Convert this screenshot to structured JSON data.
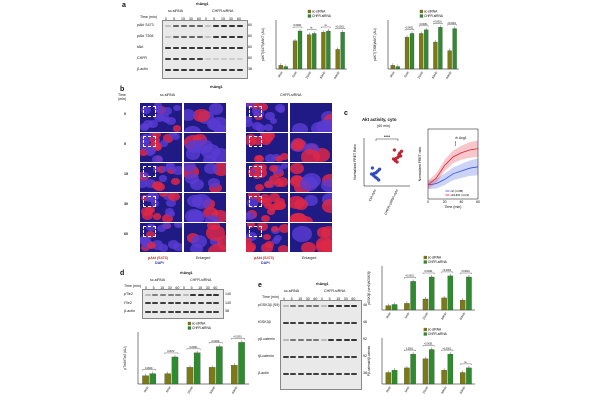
{
  "colors": {
    "sc": "#7a7a16",
    "chfr": "#2e8b2e",
    "micro_bg": "#201a85",
    "pakt_red": "#d42020",
    "dapi_blue": "#2a2aa8"
  },
  "panel_a": {
    "label": "a",
    "treatment": "rhAng1",
    "groups": [
      "sc-siRNA",
      "CHFR-siRNA"
    ],
    "time_label": "Time (min)",
    "time_points": [
      "0",
      "5",
      "15",
      "30",
      "60",
      "0",
      "5",
      "15",
      "30",
      "60"
    ],
    "rows": [
      "pAkt S473",
      "pAkt T308",
      "tAkt",
      "CHFR",
      "β-actin"
    ],
    "mw": [
      "60",
      "60",
      "60",
      "60",
      "38"
    ],
    "chart1": {
      "ylabel": "pAKT(S473)/tAKT (AU)",
      "categories": [
        "0min",
        "5min",
        "15min",
        "30min",
        "60min"
      ]
    },
    "chart2": {
      "ylabel": "pAKT(T308)/tAKT (AU)",
      "categories": [
        "0min",
        "5min",
        "15min",
        "30min",
        "60min"
      ]
    },
    "legend": [
      "sc-siRNA",
      "CHFR-siRNA"
    ],
    "pvals1": [
      "<0.0001",
      "ns",
      "ns",
      "<0.0001"
    ],
    "pvals2": [
      "<0.0001",
      "<0.0001",
      "<0.0001",
      "<0.0001"
    ]
  },
  "panel_b": {
    "label": "b",
    "treatment": "rhAng1",
    "groups": [
      "sc-siRNA",
      "CHFR-siRNA"
    ],
    "time_label": "Time (min)",
    "rows": [
      "0",
      "5",
      "15",
      "30",
      "60"
    ],
    "stain_label": "pAkt (S473)",
    "dapi_label": "DAPI",
    "enlarged_label": "Enlarged"
  },
  "panel_c": {
    "label": "c",
    "title": "Akt activity, cyto",
    "subtitle": "(60 min)",
    "sig": "****",
    "ylabel": "Normalized FRET Ratio",
    "xcats": [
      "Ctrl-cyto",
      "CHFR-siRNA-cyto"
    ],
    "right_ylabel": "Normalized FRET ratio",
    "right_xlabel": "Time (min)",
    "right_xticks": [
      "0",
      "20",
      "40",
      "60"
    ],
    "right_annot": "rh Ang1",
    "right_legend": [
      "ctrl (n=88)",
      "siCHFR (n=22)"
    ]
  },
  "panel_d": {
    "label": "d",
    "treatment": "rhAng1",
    "groups": [
      "sc-siRNA",
      "CHFR-siRNA"
    ],
    "time_label": "Time (min)",
    "time_points": [
      "0",
      "5",
      "15",
      "30",
      "60",
      "0",
      "5",
      "15",
      "30",
      "60"
    ],
    "rows": [
      "pTie2",
      "tTie2",
      "β-actin"
    ],
    "mw": [
      "140",
      "140",
      "38"
    ],
    "chart": {
      "ylabel": "pTie2/tTie2 (AU)",
      "categories": [
        "0min",
        "5min",
        "15min",
        "30min",
        "60min"
      ]
    },
    "legend": [
      "sc-siRNA",
      "CHFR-siRNA"
    ],
    "pvals": [
      "0.0029",
      "0.0072",
      "<0.0001",
      "<0.0001",
      "<0.0001"
    ]
  },
  "panel_e": {
    "label": "e",
    "treatment": "rhAng1",
    "groups": [
      "sc-siRNA",
      "CHFR-siRNA"
    ],
    "time_label": "Time (min)",
    "time_points": [
      "0",
      "5",
      "15",
      "30",
      "60",
      "0",
      "5",
      "15",
      "30",
      "60"
    ],
    "rows": [
      "pGSK3β (S9)",
      "tGSK3β",
      "pβ-catenin",
      "tβ-catenin",
      "β-actin"
    ],
    "mw": [
      "46",
      "46",
      "92",
      "92",
      "38"
    ],
    "chart1": {
      "ylabel": "pGSK3β (ser9)/tGSK3β",
      "categories": [
        "0min",
        "5min",
        "15min",
        "30min",
        "60min"
      ]
    },
    "chart2": {
      "ylabel": "Pβ-catenin/tβ-catenin",
      "categories": [
        "0min",
        "5min",
        "15min",
        "30min",
        "60min"
      ]
    },
    "legend": [
      "sc-siRNA",
      "CHFR-siRNA"
    ],
    "pvals1": [
      "<0.0001",
      "<0.0001",
      "<0.0001",
      "<0.0001"
    ],
    "pvals2": [
      "0.0001",
      "<0.0001",
      "<0.0001",
      "ns"
    ]
  },
  "chart_data": [
    {
      "type": "bar",
      "ylabel": "pAKT(S473)/tAKT (AU)",
      "categories": [
        "0min",
        "5min",
        "15min",
        "30min",
        "60min"
      ],
      "ylim": [
        0,
        4
      ],
      "series": [
        {
          "name": "sc-siRNA",
          "values": [
            0.3,
            2.3,
            2.8,
            3.0,
            1.6
          ]
        },
        {
          "name": "CHFR-siRNA",
          "values": [
            0.2,
            3.1,
            2.9,
            3.1,
            3.0
          ]
        }
      ]
    },
    {
      "type": "bar",
      "ylabel": "pAKT(T308)/tAKT (AU)",
      "categories": [
        "0min",
        "5min",
        "15min",
        "30min",
        "60min"
      ],
      "ylim": [
        0,
        4
      ],
      "series": [
        {
          "name": "sc-siRNA",
          "values": [
            0.3,
            2.6,
            2.9,
            2.2,
            1.5
          ]
        },
        {
          "name": "CHFR-siRNA",
          "values": [
            0.2,
            2.9,
            3.2,
            3.4,
            3.3
          ]
        }
      ]
    },
    {
      "type": "bar",
      "ylabel": "pTie2/tTie2 (AU)",
      "categories": [
        "0min",
        "5min",
        "15min",
        "30min",
        "60min"
      ],
      "ylim": [
        0,
        2.5
      ],
      "series": [
        {
          "name": "sc-siRNA",
          "values": [
            0.4,
            0.5,
            0.8,
            0.8,
            0.9
          ]
        },
        {
          "name": "CHFR-siRNA",
          "values": [
            0.5,
            1.3,
            1.5,
            1.8,
            2.0
          ]
        }
      ]
    },
    {
      "type": "bar",
      "ylabel": "pGSK3β (ser9)/tGSK3β",
      "categories": [
        "0min",
        "5min",
        "15min",
        "30min",
        "60min"
      ],
      "ylim": [
        0,
        4
      ],
      "series": [
        {
          "name": "sc-siRNA",
          "values": [
            0.4,
            0.6,
            1.0,
            1.1,
            0.9
          ]
        },
        {
          "name": "CHFR-siRNA",
          "values": [
            0.5,
            2.6,
            3.0,
            3.1,
            3.0
          ]
        }
      ]
    },
    {
      "type": "bar",
      "ylabel": "Pβ-catenin/tβ-catenin",
      "categories": [
        "0min",
        "5min",
        "15min",
        "30min",
        "60min"
      ],
      "ylim": [
        0,
        2
      ],
      "series": [
        {
          "name": "sc-siRNA",
          "values": [
            0.5,
            0.7,
            1.1,
            0.6,
            0.5
          ]
        },
        {
          "name": "CHFR-siRNA",
          "values": [
            0.6,
            1.3,
            1.5,
            1.3,
            0.7
          ]
        }
      ]
    },
    {
      "type": "scatter",
      "ylabel": "Normalized FRET Ratio",
      "categories": [
        "Ctrl-cyto",
        "CHFR-siRNA-cyto"
      ],
      "series": [
        {
          "name": "Ctrl-cyto",
          "values": [
            1.0,
            1.05,
            0.95,
            1.1,
            0.9,
            1.02,
            0.98,
            1.08,
            0.93,
            1.01
          ]
        },
        {
          "name": "CHFR-siRNA-cyto",
          "values": [
            1.25,
            1.35,
            1.2,
            1.4,
            1.3,
            1.28,
            1.22,
            1.38,
            1.32,
            1.26
          ]
        }
      ]
    },
    {
      "type": "line",
      "xlabel": "Time (min)",
      "ylabel": "Normalized FRET ratio",
      "x": [
        0,
        10,
        20,
        30,
        40,
        50,
        60
      ],
      "ylim": [
        0.9,
        1.4
      ],
      "series": [
        {
          "name": "ctrl (n=88)",
          "values": [
            1.0,
            1.01,
            1.04,
            1.08,
            1.1,
            1.12,
            1.13
          ]
        },
        {
          "name": "siCHFR (n=22)",
          "values": [
            1.0,
            1.05,
            1.14,
            1.2,
            1.23,
            1.25,
            1.26
          ]
        }
      ]
    }
  ]
}
